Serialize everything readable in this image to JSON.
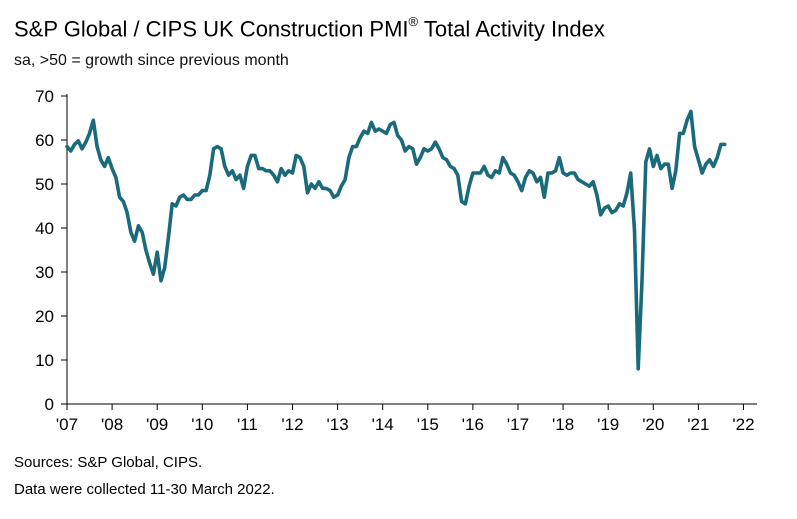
{
  "title": "S&P Global / CIPS UK Construction PMI",
  "title_mark": "®",
  "title_suffix": " Total Activity Index",
  "subtitle": "sa, >50 = growth since previous month",
  "sources": "Sources: S&P Global, CIPS.",
  "collection_note": "Data were collected 11-30 March 2022.",
  "chart_data": {
    "type": "line",
    "title": "S&P Global / CIPS UK Construction PMI® Total Activity Index",
    "subtitle": "sa, >50 = growth since previous month",
    "xlabel": "",
    "ylabel": "",
    "ylim": [
      0,
      70
    ],
    "yticks": [
      0,
      10,
      20,
      30,
      40,
      50,
      60,
      70
    ],
    "xlim": [
      2007,
      2022.3
    ],
    "xticks": [
      2007,
      2008,
      2009,
      2010,
      2011,
      2012,
      2013,
      2014,
      2015,
      2016,
      2017,
      2018,
      2019,
      2020,
      2021,
      2022
    ],
    "xtick_labels": [
      "'07",
      "'08",
      "'09",
      "'10",
      "'11",
      "'12",
      "'13",
      "'14",
      "'15",
      "'16",
      "'17",
      "'18",
      "'19",
      "'20",
      "'21",
      "'22"
    ],
    "grid": false,
    "line_color": "#1a6a7b",
    "series": [
      {
        "name": "Total Activity Index",
        "start": "2007-01",
        "frequency": "monthly",
        "values": [
          58.5,
          57.5,
          59,
          59.8,
          58,
          59.5,
          61.5,
          64.5,
          58.5,
          55.5,
          54,
          56,
          53.5,
          51.5,
          47,
          46,
          43.5,
          39,
          37,
          40.5,
          39,
          35,
          32,
          29.5,
          34.5,
          28,
          31,
          38,
          45.5,
          45,
          47,
          47.5,
          46.5,
          46.5,
          47.5,
          47.5,
          48.5,
          48.5,
          52,
          58,
          58.5,
          58,
          54,
          52,
          53,
          51,
          52,
          49,
          54,
          56.5,
          56.5,
          53.5,
          53.5,
          53,
          53,
          52,
          50.5,
          53.5,
          52,
          53,
          52.5,
          56.5,
          56,
          54,
          48,
          50,
          49,
          50.5,
          49,
          49,
          48.5,
          47,
          47.5,
          49.5,
          51,
          56,
          58.5,
          58.5,
          60.5,
          62,
          61.5,
          64,
          62,
          62.5,
          62,
          61.5,
          63.5,
          64,
          61,
          60,
          57.5,
          58.5,
          58,
          54.5,
          56,
          58,
          57.5,
          58,
          59.5,
          58,
          56,
          55.5,
          54,
          53.5,
          52,
          46,
          45.5,
          49.5,
          52.5,
          52.5,
          52.5,
          54,
          52,
          51.5,
          53,
          52.5,
          56,
          54.5,
          52.5,
          52,
          50.5,
          48.5,
          51.5,
          53,
          52.5,
          50.5,
          51.5,
          47,
          52.5,
          52.5,
          53,
          56,
          52.5,
          52,
          52.5,
          52.5,
          51,
          50.5,
          50,
          49.5,
          50.5,
          47.5,
          43,
          44.5,
          45,
          43.5,
          44,
          45.5,
          45,
          48,
          52.5,
          39.5,
          8,
          28,
          55,
          58,
          54,
          56.5,
          53.5,
          54.5,
          54.5,
          49,
          53,
          61.5,
          61.5,
          64.5,
          66.5,
          58.5,
          55.5,
          52.5,
          54.5,
          55.5,
          54,
          56,
          59,
          59
        ]
      }
    ]
  }
}
